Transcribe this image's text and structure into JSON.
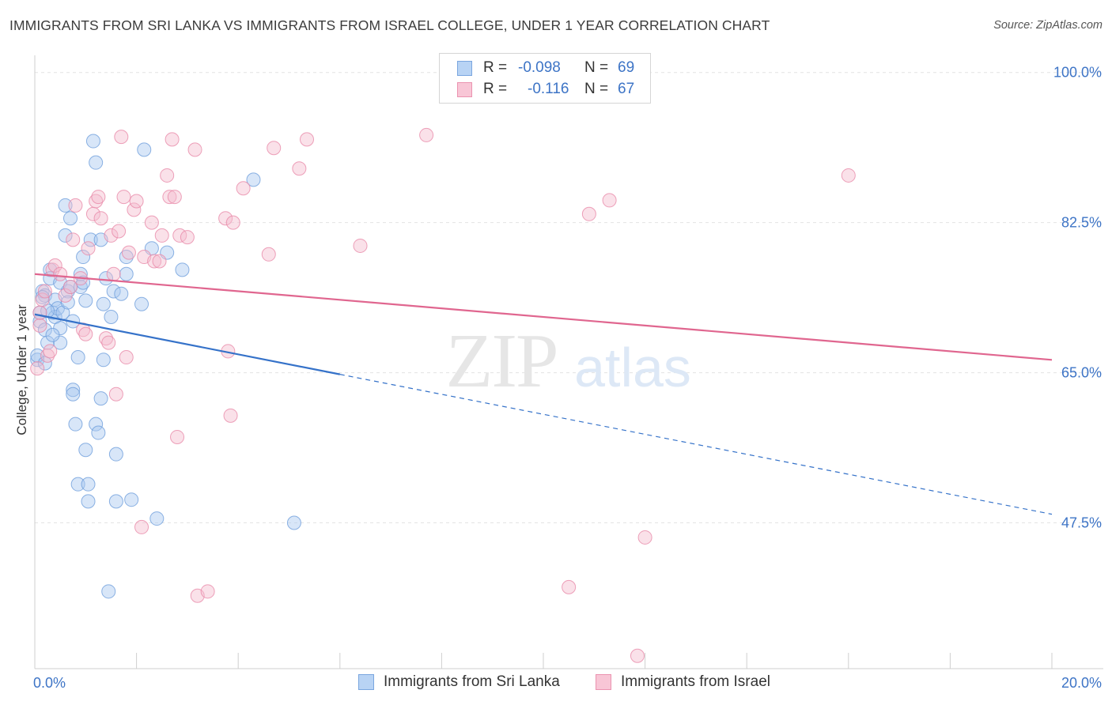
{
  "title": "IMMIGRANTS FROM SRI LANKA VS IMMIGRANTS FROM ISRAEL COLLEGE, UNDER 1 YEAR CORRELATION CHART",
  "source": "Source: ZipAtlas.com",
  "watermark": {
    "zip": "ZIP",
    "atlas": "atlas"
  },
  "legend": {
    "rows": [
      {
        "r_label": "R =",
        "r_value": "-0.098",
        "n_label": "N =",
        "n_value": "69"
      },
      {
        "r_label": "R =",
        "r_value": "-0.116",
        "n_label": "N =",
        "n_value": "67"
      }
    ]
  },
  "chart_data": {
    "type": "scatter",
    "title": "IMMIGRANTS FROM SRI LANKA VS IMMIGRANTS FROM ISRAEL COLLEGE, UNDER 1 YEAR CORRELATION CHART",
    "xlabel": "",
    "ylabel": "College, Under 1 year",
    "xlim": [
      0,
      20
    ],
    "ylim": [
      30.5,
      102
    ],
    "x_tick_labels": [
      {
        "value": 0,
        "label": "0.0%"
      },
      {
        "value": 20,
        "label": "20.0%"
      }
    ],
    "y_tick_labels": [
      {
        "value": 100,
        "label": "100.0%"
      },
      {
        "value": 82.5,
        "label": "82.5%"
      },
      {
        "value": 65,
        "label": "65.0%"
      },
      {
        "value": 47.5,
        "label": "47.5%"
      }
    ],
    "grid": true,
    "series": [
      {
        "name": "Immigrants from Sri Lanka",
        "color": "#a9c8f0",
        "edge_color": "#6f9fdc",
        "line_color": "#3572c9",
        "trend": {
          "x0": 0,
          "y0": 71.8,
          "x1": 20,
          "y1": 48.5,
          "solid_until": 6.0
        },
        "points": [
          [
            0.05,
            66.5
          ],
          [
            0.05,
            67
          ],
          [
            0.1,
            71
          ],
          [
            0.1,
            72
          ],
          [
            0.15,
            74.5
          ],
          [
            0.2,
            74
          ],
          [
            0.2,
            70
          ],
          [
            0.25,
            68.5
          ],
          [
            0.3,
            77
          ],
          [
            0.3,
            76
          ],
          [
            0.35,
            72
          ],
          [
            0.4,
            73.5
          ],
          [
            0.4,
            71.5
          ],
          [
            0.45,
            72.5
          ],
          [
            0.5,
            68.5
          ],
          [
            0.5,
            75.5
          ],
          [
            0.55,
            72
          ],
          [
            0.6,
            84.5
          ],
          [
            0.6,
            81
          ],
          [
            0.65,
            74.5
          ],
          [
            0.7,
            83
          ],
          [
            0.7,
            75
          ],
          [
            0.75,
            71
          ],
          [
            0.75,
            63
          ],
          [
            0.75,
            62.5
          ],
          [
            0.8,
            59
          ],
          [
            0.85,
            52
          ],
          [
            0.9,
            75
          ],
          [
            0.9,
            76.5
          ],
          [
            0.95,
            78.5
          ],
          [
            0.95,
            75.5
          ],
          [
            1.0,
            56
          ],
          [
            1.05,
            52
          ],
          [
            1.05,
            50
          ],
          [
            1.1,
            80.5
          ],
          [
            1.15,
            92
          ],
          [
            1.2,
            89.5
          ],
          [
            1.2,
            59
          ],
          [
            1.25,
            58
          ],
          [
            1.3,
            80.5
          ],
          [
            1.3,
            62
          ],
          [
            1.35,
            66.5
          ],
          [
            1.35,
            73
          ],
          [
            1.4,
            76
          ],
          [
            1.45,
            39.5
          ],
          [
            1.5,
            71.5
          ],
          [
            1.55,
            74.5
          ],
          [
            1.6,
            55.5
          ],
          [
            1.6,
            50
          ],
          [
            1.8,
            76.5
          ],
          [
            1.8,
            78.5
          ],
          [
            1.9,
            50.2
          ],
          [
            2.1,
            73
          ],
          [
            2.15,
            91
          ],
          [
            2.3,
            79.5
          ],
          [
            2.4,
            48
          ],
          [
            2.6,
            79
          ],
          [
            2.9,
            77
          ],
          [
            4.3,
            87.5
          ],
          [
            5.1,
            47.5
          ],
          [
            0.15,
            73.8
          ],
          [
            0.25,
            72.2
          ],
          [
            0.5,
            70.2
          ],
          [
            0.65,
            73.2
          ],
          [
            1.0,
            73.4
          ],
          [
            1.7,
            74.2
          ],
          [
            0.35,
            69.4
          ],
          [
            0.85,
            66.8
          ],
          [
            0.2,
            66.1
          ]
        ]
      },
      {
        "name": "Immigrants from Israel",
        "color": "#f5bccf",
        "edge_color": "#e88aa9",
        "line_color": "#e0668f",
        "trend": {
          "x0": 0,
          "y0": 76.5,
          "x1": 20,
          "y1": 66.5,
          "solid_until": 20
        },
        "points": [
          [
            0.05,
            65.5
          ],
          [
            0.1,
            70.5
          ],
          [
            0.1,
            72
          ],
          [
            0.15,
            73.5
          ],
          [
            0.2,
            74.5
          ],
          [
            0.25,
            67
          ],
          [
            0.3,
            67.5
          ],
          [
            0.35,
            77
          ],
          [
            0.4,
            77.5
          ],
          [
            0.5,
            76.5
          ],
          [
            0.6,
            74
          ],
          [
            0.7,
            75
          ],
          [
            0.75,
            80.5
          ],
          [
            0.8,
            84.5
          ],
          [
            0.9,
            76
          ],
          [
            0.95,
            70
          ],
          [
            1.0,
            69.5
          ],
          [
            1.05,
            79.5
          ],
          [
            1.15,
            83.5
          ],
          [
            1.2,
            85
          ],
          [
            1.25,
            85.5
          ],
          [
            1.3,
            83
          ],
          [
            1.4,
            69
          ],
          [
            1.45,
            68.5
          ],
          [
            1.5,
            81
          ],
          [
            1.55,
            76.5
          ],
          [
            1.6,
            62.5
          ],
          [
            1.65,
            81.5
          ],
          [
            1.7,
            92.5
          ],
          [
            1.75,
            85.5
          ],
          [
            1.8,
            66.8
          ],
          [
            1.85,
            79
          ],
          [
            1.95,
            84
          ],
          [
            2.0,
            85
          ],
          [
            2.1,
            47
          ],
          [
            2.15,
            78.5
          ],
          [
            2.3,
            82.5
          ],
          [
            2.35,
            78
          ],
          [
            2.45,
            78
          ],
          [
            2.5,
            81
          ],
          [
            2.6,
            88
          ],
          [
            2.65,
            85.5
          ],
          [
            2.7,
            92.2
          ],
          [
            2.75,
            85.5
          ],
          [
            2.8,
            57.5
          ],
          [
            2.85,
            81
          ],
          [
            3.0,
            80.8
          ],
          [
            3.15,
            91
          ],
          [
            3.2,
            39
          ],
          [
            3.4,
            39.5
          ],
          [
            3.75,
            83
          ],
          [
            3.8,
            67.5
          ],
          [
            3.85,
            60
          ],
          [
            3.9,
            82.5
          ],
          [
            4.1,
            86.5
          ],
          [
            4.6,
            78.8
          ],
          [
            4.7,
            91.2
          ],
          [
            5.2,
            88.8
          ],
          [
            5.35,
            92.2
          ],
          [
            6.4,
            79.8
          ],
          [
            7.7,
            92.7
          ],
          [
            10.5,
            40
          ],
          [
            10.9,
            83.5
          ],
          [
            11.3,
            85.1
          ],
          [
            11.85,
            32
          ],
          [
            12.0,
            45.8
          ],
          [
            16.0,
            88
          ]
        ]
      }
    ]
  }
}
